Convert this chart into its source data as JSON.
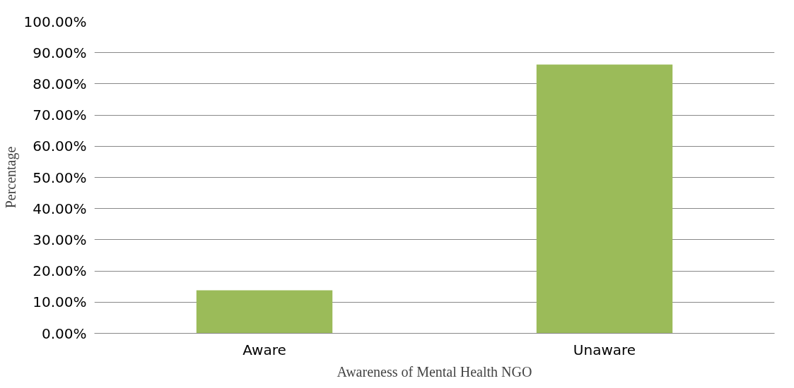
{
  "chart_data": {
    "type": "bar",
    "xlabel": "Awareness of Mental Health NGO",
    "ylabel": "Percentage",
    "categories": [
      "Aware",
      "Unaware"
    ],
    "values": [
      13.8,
      86.2
    ],
    "color": "#9bbb59",
    "ylim": [
      0,
      100
    ],
    "yticks": [
      {
        "value": 0,
        "label": "0.00%"
      },
      {
        "value": 10,
        "label": "10.00%"
      },
      {
        "value": 20,
        "label": "20.00%"
      },
      {
        "value": 30,
        "label": "30.00%"
      },
      {
        "value": 40,
        "label": "40.00%"
      },
      {
        "value": 50,
        "label": "50.00%"
      },
      {
        "value": 60,
        "label": "60.00%"
      },
      {
        "value": 70,
        "label": "70.00%"
      },
      {
        "value": 80,
        "label": "80.00%"
      },
      {
        "value": 90,
        "label": "90.00%"
      },
      {
        "value": 100,
        "label": "100.00%"
      }
    ],
    "grid": "y"
  }
}
